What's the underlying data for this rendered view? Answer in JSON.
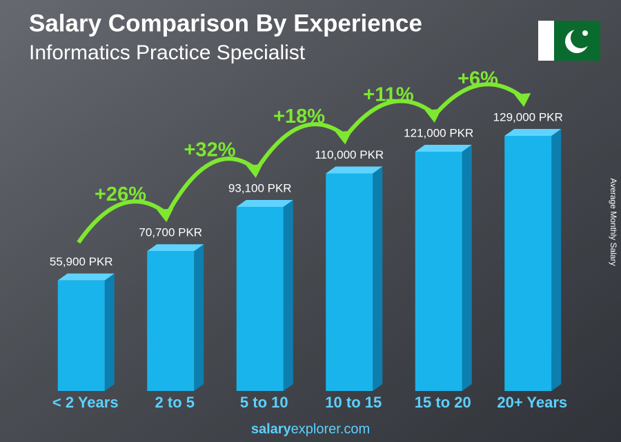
{
  "chart_data": {
    "type": "bar",
    "title": "Salary Comparison By Experience",
    "subtitle": "Informatics Practice Specialist",
    "y_label": "Average Monthly Salary",
    "categories": [
      "< 2 Years",
      "2 to 5",
      "5 to 10",
      "10 to 15",
      "15 to 20",
      "20+ Years"
    ],
    "values": [
      55900,
      70700,
      93100,
      110000,
      121000,
      129000
    ],
    "value_labels": [
      "55,900 PKR",
      "70,700 PKR",
      "93,100 PKR",
      "110,000 PKR",
      "121,000 PKR",
      "129,000 PKR"
    ],
    "changes": [
      "+26%",
      "+32%",
      "+18%",
      "+11%",
      "+6%"
    ],
    "color": "#1ab4ec",
    "change_color": "#7ee830",
    "footer": {
      "brand": "salary",
      "domain": "explorer.com"
    }
  }
}
